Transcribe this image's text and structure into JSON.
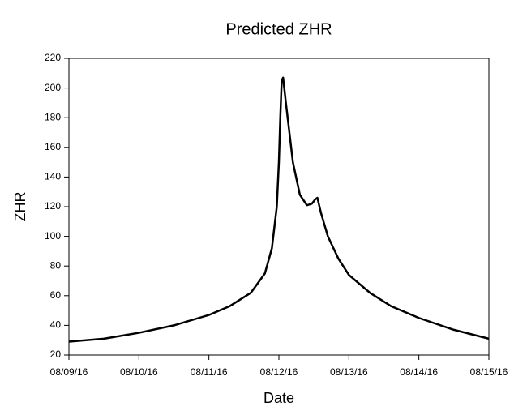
{
  "chart_data": {
    "type": "line",
    "title": "Predicted ZHR",
    "x_label": "Date",
    "y_label": "ZHR",
    "x": [
      0,
      0.5,
      1,
      1.5,
      2,
      2.3,
      2.6,
      2.8,
      2.9,
      2.97,
      3.0,
      3.02,
      3.04,
      3.06,
      3.1,
      3.2,
      3.3,
      3.4,
      3.47,
      3.52,
      3.55,
      3.6,
      3.7,
      3.85,
      4.0,
      4.3,
      4.6,
      5.0,
      5.5,
      6.0
    ],
    "values": [
      29,
      31,
      35,
      40,
      47,
      53,
      62,
      75,
      92,
      120,
      150,
      180,
      205,
      207,
      190,
      150,
      128,
      121,
      122,
      125,
      126,
      116,
      100,
      85,
      74,
      62,
      53,
      45,
      37,
      31
    ],
    "color": "#000000",
    "xlim": [
      0,
      6
    ],
    "xticks": [
      {
        "value": 0,
        "label": "08/09/16"
      },
      {
        "value": 1,
        "label": "08/10/16"
      },
      {
        "value": 2,
        "label": "08/11/16"
      },
      {
        "value": 3,
        "label": "08/12/16"
      },
      {
        "value": 4,
        "label": "08/13/16"
      },
      {
        "value": 5,
        "label": "08/14/16"
      },
      {
        "value": 6,
        "label": "08/15/16"
      }
    ],
    "ylim": [
      20,
      220
    ],
    "yticks": [
      20,
      40,
      60,
      80,
      100,
      120,
      140,
      160,
      180,
      200,
      220
    ],
    "grid": false
  }
}
